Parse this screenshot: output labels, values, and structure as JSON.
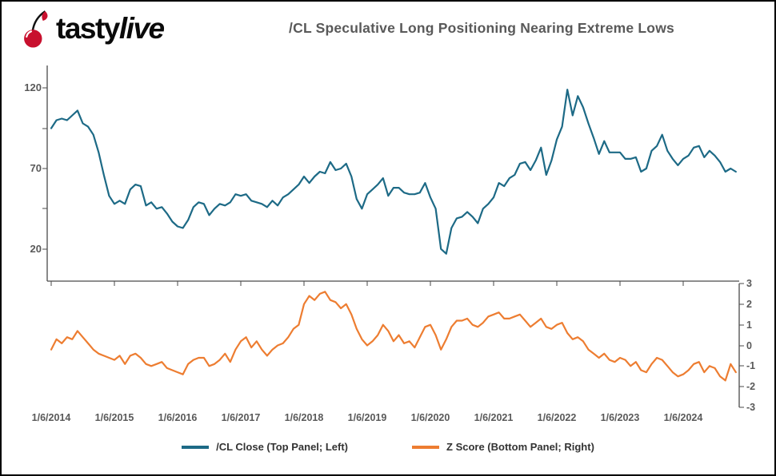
{
  "header": {
    "logo": {
      "part1": "tasty",
      "part2": "live"
    },
    "title": "/CL Speculative Long Positioning Nearing Extreme Lows"
  },
  "chart_data": {
    "type": "line",
    "layout": "two stacked panels sharing one x axis; top panel y axis on left, bottom panel y axis on right",
    "x_unit": "months since 2014-01 (weekly data approximated monthly)",
    "x_tick_labels": [
      "1/6/2014",
      "1/6/2015",
      "1/6/2016",
      "1/6/2017",
      "1/6/2018",
      "1/6/2019",
      "1/6/2020",
      "1/6/2021",
      "1/6/2022",
      "1/6/2023",
      "1/6/2024"
    ],
    "top_panel": {
      "name": "/CL Close",
      "axis_side": "left",
      "y_ticks": [
        120,
        70,
        20
      ],
      "ylim": [
        0,
        135
      ],
      "color": "#1D6A86",
      "values": [
        95,
        100,
        101,
        100,
        103,
        106,
        98,
        96,
        91,
        80,
        66,
        53,
        48,
        50,
        48,
        57,
        60,
        59,
        47,
        49,
        45,
        46,
        42,
        37,
        34,
        33,
        38,
        46,
        49,
        48,
        41,
        45,
        48,
        47,
        49,
        54,
        53,
        54,
        50,
        49,
        48,
        46,
        50,
        47,
        52,
        54,
        57,
        60,
        65,
        61,
        65,
        68,
        67,
        74,
        69,
        70,
        73,
        65,
        51,
        45,
        54,
        57,
        60,
        64,
        53,
        58,
        58,
        55,
        54,
        54,
        55,
        61,
        52,
        45,
        20,
        17,
        33,
        39,
        40,
        43,
        40,
        36,
        45,
        48,
        52,
        61,
        59,
        64,
        66,
        73,
        74,
        69,
        75,
        83,
        66,
        75,
        88,
        96,
        119,
        103,
        115,
        108,
        98,
        89,
        79,
        87,
        80,
        80,
        80,
        76,
        76,
        77,
        68,
        70,
        81,
        84,
        91,
        81,
        76,
        72,
        76,
        78,
        83,
        84,
        77,
        81,
        78,
        74,
        68,
        70,
        68
      ]
    },
    "bottom_panel": {
      "name": "Z Score",
      "axis_side": "right",
      "y_ticks": [
        3,
        2,
        1,
        0,
        -1,
        -2,
        -3
      ],
      "ylim": [
        -3,
        3
      ],
      "color": "#ED7D31",
      "values": [
        -0.2,
        0.3,
        0.1,
        0.4,
        0.3,
        0.7,
        0.4,
        0.1,
        -0.2,
        -0.4,
        -0.5,
        -0.6,
        -0.7,
        -0.5,
        -0.9,
        -0.5,
        -0.4,
        -0.6,
        -0.9,
        -1.0,
        -0.9,
        -0.8,
        -1.1,
        -1.2,
        -1.3,
        -1.4,
        -0.9,
        -0.7,
        -0.6,
        -0.6,
        -1.0,
        -0.9,
        -0.7,
        -0.4,
        -0.8,
        -0.2,
        0.2,
        0.4,
        -0.1,
        0.2,
        -0.2,
        -0.5,
        -0.2,
        0.0,
        0.1,
        0.4,
        0.8,
        1.0,
        2.0,
        2.4,
        2.2,
        2.5,
        2.6,
        2.2,
        2.1,
        1.8,
        2.0,
        1.5,
        0.8,
        0.3,
        0.0,
        0.2,
        0.5,
        1.0,
        0.7,
        0.2,
        0.5,
        0.1,
        0.2,
        -0.1,
        0.4,
        0.9,
        1.0,
        0.5,
        -0.2,
        0.3,
        0.9,
        1.2,
        1.2,
        1.3,
        1.0,
        0.9,
        1.1,
        1.4,
        1.5,
        1.6,
        1.3,
        1.3,
        1.4,
        1.5,
        1.2,
        0.9,
        1.1,
        1.3,
        0.9,
        0.8,
        1.0,
        1.1,
        0.6,
        0.3,
        0.4,
        0.2,
        -0.2,
        -0.4,
        -0.6,
        -0.4,
        -0.7,
        -0.8,
        -0.6,
        -0.7,
        -1.0,
        -0.8,
        -1.2,
        -1.3,
        -0.9,
        -0.6,
        -0.7,
        -1.0,
        -1.3,
        -1.5,
        -1.4,
        -1.2,
        -0.9,
        -0.8,
        -1.3,
        -1.0,
        -1.1,
        -1.5,
        -1.7,
        -0.9,
        -1.3
      ]
    },
    "legend": [
      {
        "label": "/CL Close (Top Panel; Left)",
        "color": "#1D6A86"
      },
      {
        "label": "Z Score (Bottom Panel; Right)",
        "color": "#ED7D31"
      }
    ]
  }
}
